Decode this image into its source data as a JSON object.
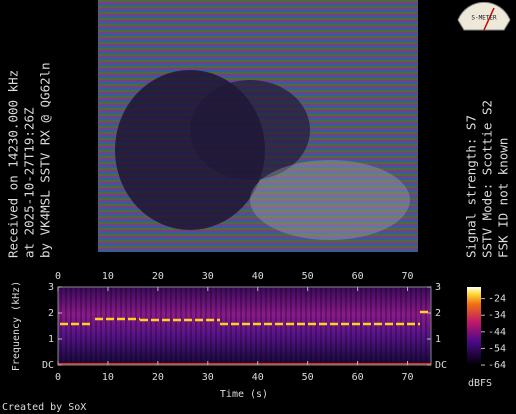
{
  "left_text": [
    "Received on  14230.000 kHz",
    "at 2025-10-27T19:26Z",
    "by VK4MSL SSTV RX @ QG62ln"
  ],
  "right_text": [
    "Signal strength: S7",
    "SSTV Mode: Scottie S2",
    "FSK ID not known"
  ],
  "meter": {
    "label": "S-METER"
  },
  "footer": "Created by SoX",
  "chart_data": {
    "type": "spectrogram",
    "x_label": "Time (s)",
    "y_label": "Frequency (kHz)",
    "xlim": [
      0,
      74.7
    ],
    "xticks": [
      0,
      10,
      20,
      30,
      40,
      50,
      60,
      70
    ],
    "ylim": [
      0,
      3
    ],
    "yticks": [
      {
        "value": 0,
        "label": "DC"
      },
      1,
      2,
      3
    ],
    "colorbar": {
      "label": "dBFS",
      "zlim": [
        -64,
        -17
      ],
      "ticks": [
        -24,
        -34,
        -44,
        -54,
        -64
      ]
    }
  }
}
